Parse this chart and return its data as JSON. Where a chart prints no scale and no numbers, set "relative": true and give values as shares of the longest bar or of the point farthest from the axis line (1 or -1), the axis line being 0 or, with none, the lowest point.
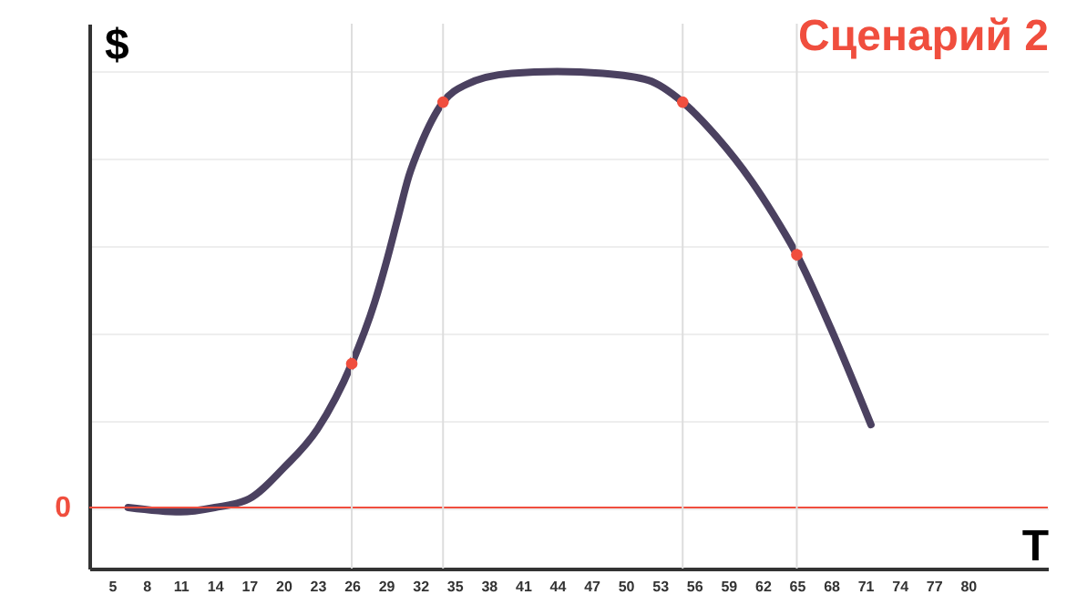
{
  "chart_data": {
    "type": "line",
    "title": "Сценарий 2",
    "xlabel": "T",
    "ylabel": "$",
    "relative": true,
    "x": [
      6.4,
      11,
      14,
      17,
      20,
      23,
      26,
      28,
      29,
      30,
      31,
      32,
      34,
      36,
      40,
      44,
      48,
      52,
      55,
      58,
      61,
      63,
      65,
      68,
      71.5
    ],
    "series": [
      {
        "type": "line",
        "color": "#4b4160",
        "values": [
          0,
          -0.01,
          0,
          0.02,
          0.09,
          0.18,
          0.33,
          0.47,
          0.56,
          0.66,
          0.76,
          0.83,
          0.93,
          0.97,
          0.996,
          1,
          0.996,
          0.98,
          0.93,
          0.85,
          0.75,
          0.67,
          0.58,
          0.41,
          0.19
        ]
      },
      {
        "type": "scatter",
        "color": "#f04e3e",
        "x": [
          26,
          34,
          55,
          65
        ],
        "values": [
          0.33,
          0.93,
          0.93,
          0.58
        ]
      }
    ],
    "xlim": [
      3,
      87
    ],
    "xticks": [
      5,
      8,
      11,
      14,
      17,
      20,
      23,
      26,
      29,
      32,
      35,
      38,
      41,
      44,
      47,
      50,
      53,
      56,
      59,
      62,
      65,
      68,
      71,
      74,
      77,
      80
    ],
    "grid": "y",
    "line_style": "solid",
    "ref_lines": [
      {
        "axis": "y",
        "value": 0,
        "label": "0",
        "color": "#f04e3e"
      },
      {
        "axis": "x",
        "value": 26,
        "color": "#dddddd"
      },
      {
        "axis": "x",
        "value": 34,
        "color": "#dddddd"
      },
      {
        "axis": "x",
        "value": 55,
        "color": "#dddddd"
      },
      {
        "axis": "x",
        "value": 65,
        "color": "#dddddd"
      }
    ]
  }
}
